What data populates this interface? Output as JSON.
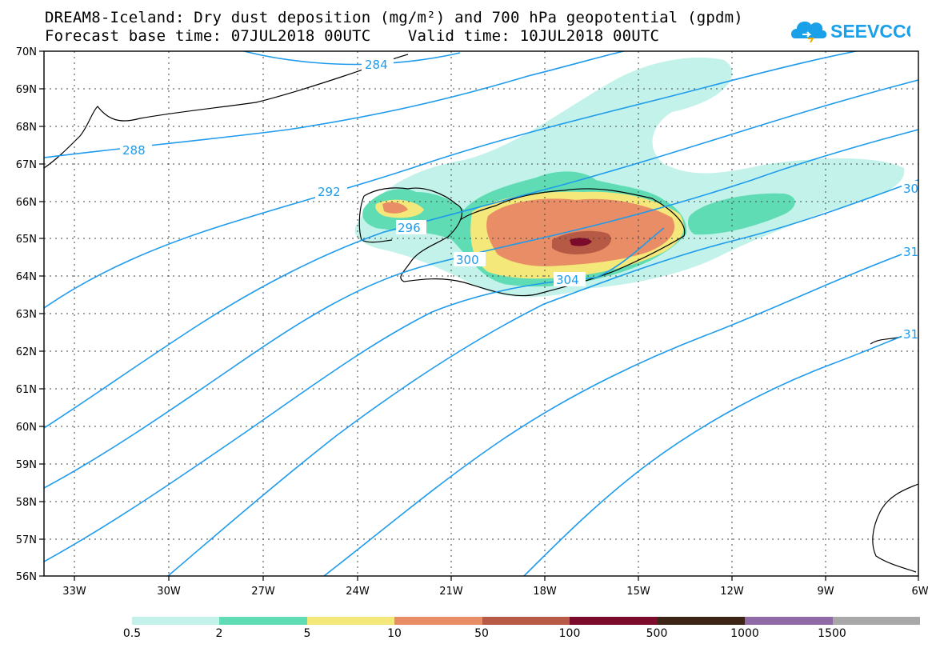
{
  "title": {
    "line1": "DREAM8-Iceland: Dry dust deposition (mg/m²) and 700 hPa geopotential (gpdm)",
    "line2": "Forecast base time: 07JUL2018 00UTC    Valid time: 10JUL2018 00UTC"
  },
  "logo": {
    "text": "SEEVCCC",
    "icon": "cloud-icon",
    "color": "#1aa0e8"
  },
  "map": {
    "lat_labels": [
      "70N",
      "69N",
      "68N",
      "67N",
      "66N",
      "65N",
      "64N",
      "63N",
      "62N",
      "61N",
      "60N",
      "59N",
      "58N",
      "57N",
      "56N"
    ],
    "lon_labels": [
      "33W",
      "30W",
      "27W",
      "24W",
      "21W",
      "18W",
      "15W",
      "12W",
      "9W",
      "6W"
    ],
    "contour_color": "#1e9bec",
    "contour_labels": [
      "284",
      "288",
      "292",
      "296",
      "300",
      "304",
      "30",
      "31",
      "31"
    ]
  },
  "legend": {
    "colors": [
      "#c2f2ea",
      "#5fdcb4",
      "#f5e87a",
      "#e88d65",
      "#b65a45",
      "#7a0b2a",
      "#3d2516",
      "#8f6aa6",
      "#a8a8a8"
    ],
    "labels": [
      "0.5",
      "2",
      "5",
      "10",
      "50",
      "100",
      "500",
      "1000",
      "1500"
    ]
  }
}
